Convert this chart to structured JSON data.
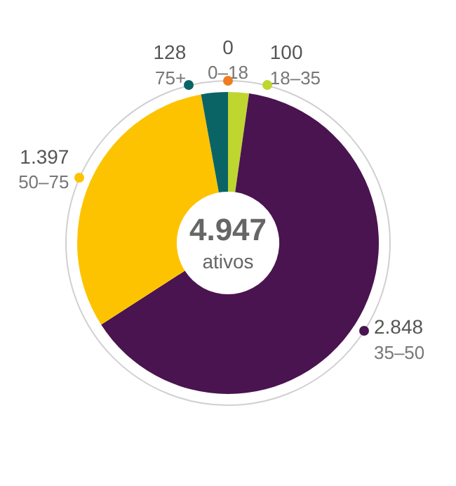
{
  "chart_data": {
    "type": "donut",
    "categories": [
      "0–18",
      "18–35",
      "35–50",
      "50–75",
      "75+"
    ],
    "values": [
      0,
      100,
      2848,
      1397,
      128
    ],
    "value_labels": [
      "0",
      "100",
      "2.848",
      "1.397",
      "128"
    ],
    "colors": [
      "#f07c22",
      "#bfd630",
      "#4a1450",
      "#fdc300",
      "#0a6466"
    ],
    "annotations": [
      "4.947",
      "ativos"
    ],
    "legend": "top left"
  }
}
